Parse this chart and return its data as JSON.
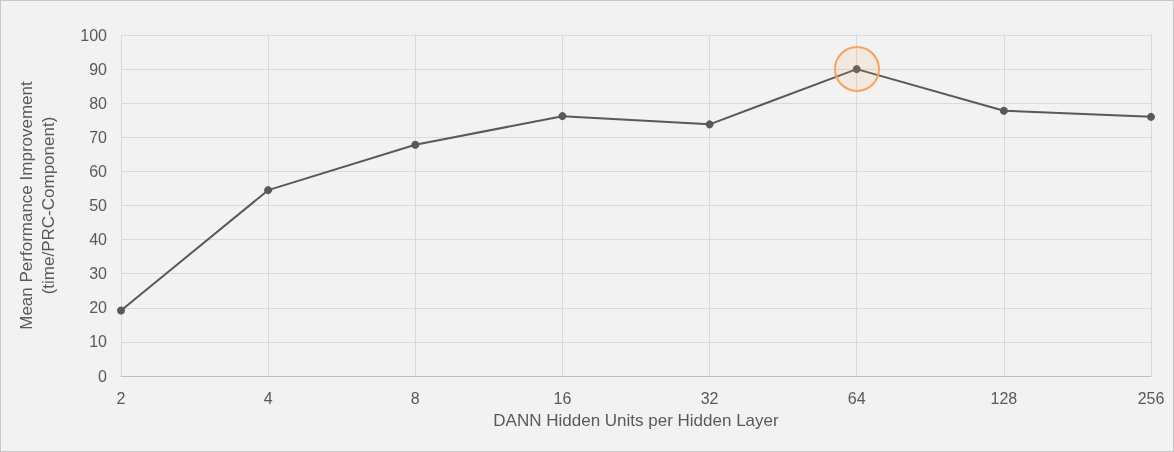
{
  "chart_data": {
    "type": "line",
    "xlabel": "DANN Hidden Units per Hidden Layer",
    "ylabel": "Mean Performance Improvement\n(time/PRC-Component)",
    "categories": [
      "2",
      "4",
      "8",
      "16",
      "32",
      "64",
      "128",
      "256"
    ],
    "series": [
      {
        "color": "#595959",
        "values": [
          19.2,
          54.5,
          67.8,
          76.2,
          73.8,
          90,
          77.8,
          76
        ]
      }
    ],
    "ylim": [
      0,
      100
    ],
    "yticks": [
      0,
      10,
      20,
      30,
      40,
      50,
      60,
      70,
      80,
      90,
      100
    ],
    "grid": true,
    "marker": "circle",
    "line_style": "solid"
  }
}
